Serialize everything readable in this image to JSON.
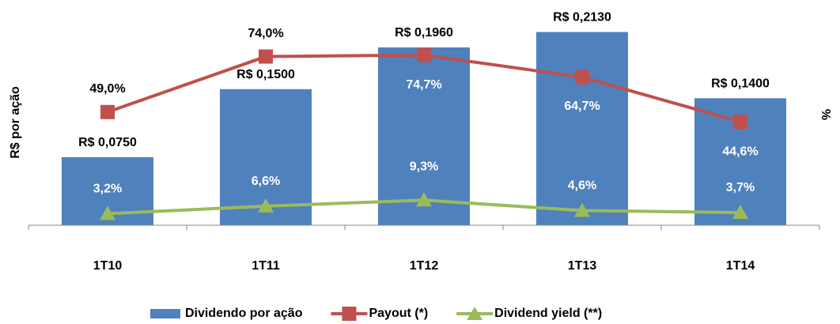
{
  "chart_data": {
    "type": "bar-line",
    "y_label": "R$ por ação",
    "y2_label": "%",
    "categories": [
      "1T10",
      "1T11",
      "1T12",
      "1T13",
      "1T14"
    ],
    "ylim": [
      0,
      0.23
    ],
    "y2lim": [
      -2,
      92
    ],
    "series": [
      {
        "name": "Dividendo por ação",
        "type": "bar",
        "color": "#4f81bd",
        "values": [
          0.075,
          0.15,
          0.196,
          0.213,
          0.14
        ],
        "value_labels": [
          "R$ 0,0750",
          "R$ 0,1500",
          "R$ 0,1960",
          "R$ 0,2130",
          "R$ 0,1400"
        ]
      },
      {
        "name": "Payout (*)",
        "type": "line",
        "marker": "square",
        "axis": "y2",
        "color": "#c0504d",
        "values": [
          49.0,
          74.0,
          74.7,
          64.7,
          44.6
        ],
        "value_labels": [
          "49,0%",
          "74,0%",
          "74,7%",
          "64,7%",
          "44,6%"
        ]
      },
      {
        "name": "Dividend yield (**)",
        "type": "line",
        "marker": "triangle",
        "axis": "y2",
        "color": "#9bbb59",
        "values": [
          3.2,
          6.6,
          9.3,
          4.6,
          3.7
        ],
        "value_labels": [
          "3,2%",
          "6,6%",
          "9,3%",
          "4,6%",
          "3,7%"
        ]
      }
    ]
  }
}
